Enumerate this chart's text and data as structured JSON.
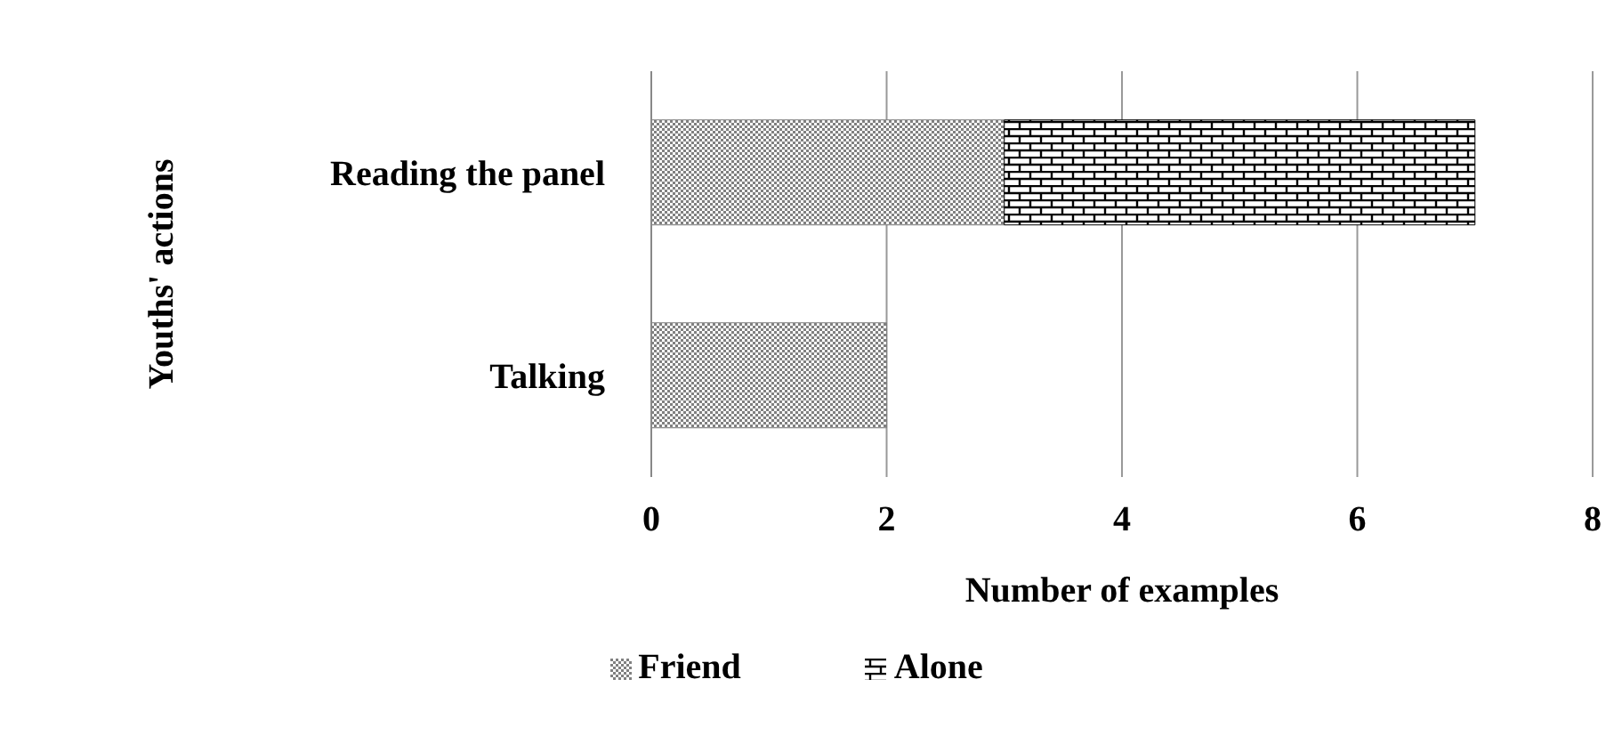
{
  "chart_data": {
    "type": "bar",
    "orientation": "horizontal",
    "stacked": true,
    "xlabel": "Number of examples",
    "ylabel": "Youths' actions",
    "categories": [
      "Reading the panel",
      "Talking"
    ],
    "series": [
      {
        "name": "Friend",
        "color": "#808080",
        "values": [
          3,
          2
        ]
      },
      {
        "name": "Alone",
        "color": "#000000",
        "values": [
          4,
          null
        ]
      }
    ],
    "xlim": [
      0,
      8
    ],
    "xticks": [
      0,
      2,
      4,
      6,
      8
    ],
    "grid": "x",
    "legend": "bottom"
  }
}
